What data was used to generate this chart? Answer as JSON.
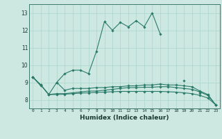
{
  "xlabel": "Humidex (Indice chaleur)",
  "background_color": "#cce8e0",
  "grid_color": "#aad4cc",
  "line_color": "#2a7a6a",
  "x_values": [
    0,
    1,
    2,
    3,
    4,
    5,
    6,
    7,
    8,
    9,
    10,
    11,
    12,
    13,
    14,
    15,
    16,
    17,
    18,
    19,
    20,
    21,
    22,
    23
  ],
  "series1": [
    9.3,
    8.8,
    null,
    9.0,
    9.5,
    9.7,
    9.7,
    9.5,
    10.8,
    12.5,
    12.0,
    12.45,
    12.2,
    12.55,
    12.2,
    13.0,
    11.8,
    null,
    null,
    9.1,
    null,
    8.4,
    null,
    null
  ],
  "series2": [
    9.3,
    8.85,
    8.3,
    9.0,
    8.55,
    8.65,
    8.65,
    8.65,
    8.7,
    8.7,
    8.75,
    8.75,
    8.8,
    8.8,
    8.85,
    8.85,
    8.9,
    8.85,
    8.85,
    8.8,
    8.75,
    8.5,
    8.3,
    7.7
  ],
  "series3": [
    9.3,
    8.85,
    8.3,
    8.35,
    8.35,
    8.4,
    8.45,
    8.5,
    8.5,
    8.55,
    8.6,
    8.65,
    8.7,
    8.7,
    8.72,
    8.72,
    8.75,
    8.75,
    8.7,
    8.65,
    8.6,
    8.45,
    8.25,
    7.7
  ],
  "series4": [
    9.3,
    8.85,
    8.3,
    8.3,
    8.32,
    8.35,
    8.38,
    8.4,
    8.42,
    8.44,
    8.46,
    8.48,
    8.48,
    8.48,
    8.48,
    8.48,
    8.48,
    8.46,
    8.44,
    8.4,
    8.35,
    8.25,
    8.1,
    7.7
  ],
  "ylim": [
    7.5,
    13.5
  ],
  "xlim": [
    -0.5,
    23.5
  ],
  "yticks": [
    8,
    9,
    10,
    11,
    12,
    13
  ],
  "xticks": [
    0,
    1,
    2,
    3,
    4,
    5,
    6,
    7,
    8,
    9,
    10,
    11,
    12,
    13,
    14,
    15,
    16,
    17,
    18,
    19,
    20,
    21,
    22,
    23
  ]
}
